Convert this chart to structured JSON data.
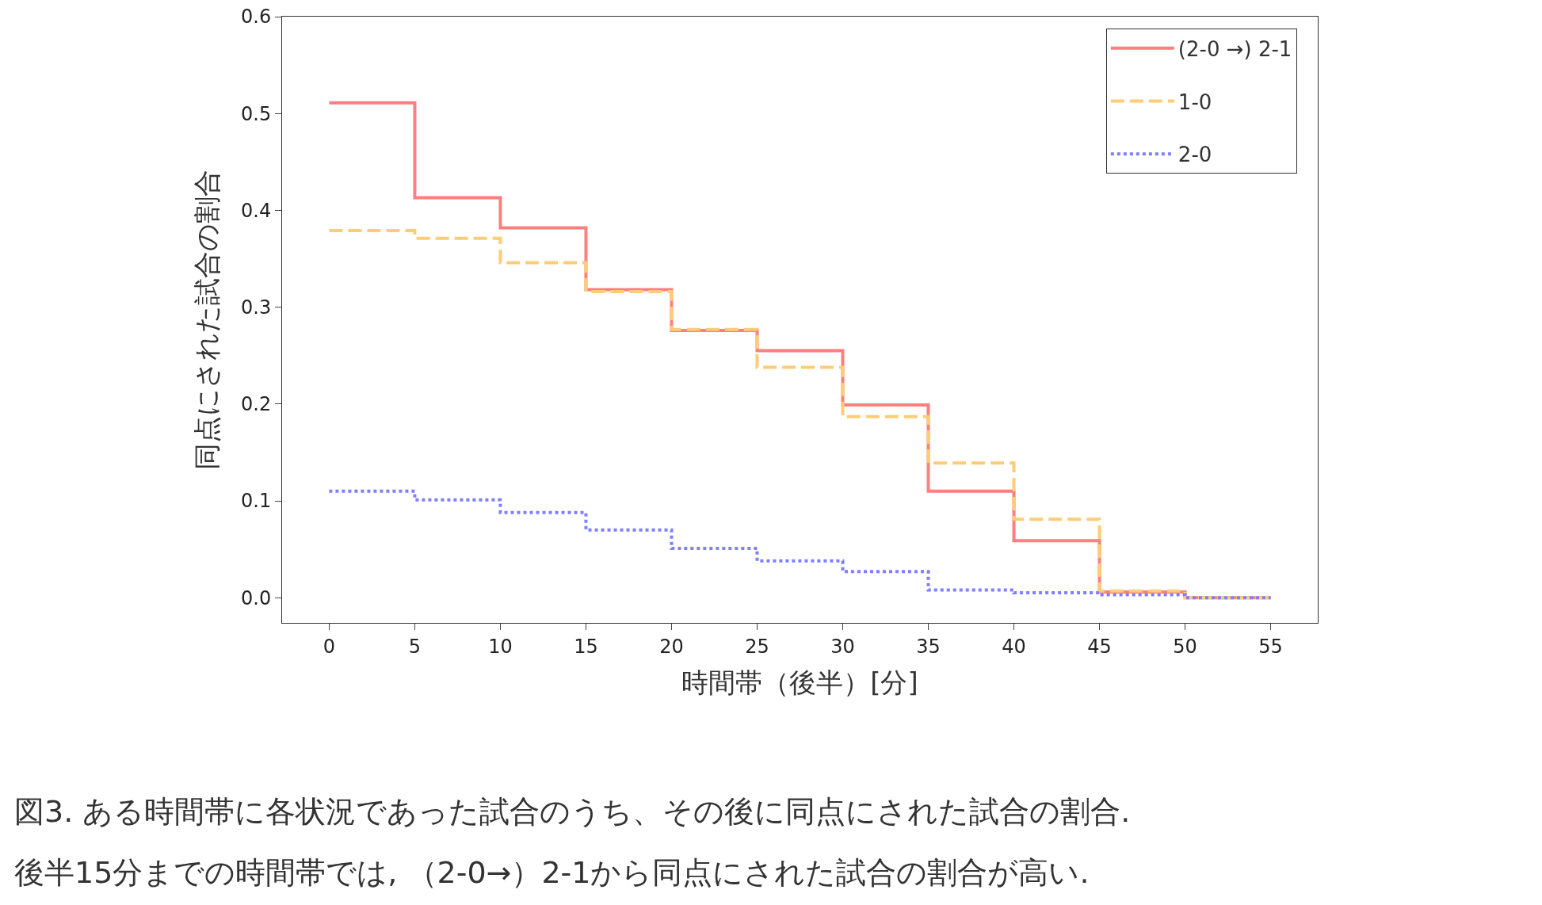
{
  "chart_data": {
    "type": "step",
    "xlabel": "時間帯（後半）[分]",
    "ylabel": "同点にされた試合の割合",
    "x": [
      0,
      5,
      10,
      15,
      20,
      25,
      30,
      35,
      40,
      45,
      50,
      55
    ],
    "series": [
      {
        "name": "(2-0 →) 2-1",
        "color": "#ff7f7f",
        "line_style": "solid",
        "values": [
          0.511,
          0.413,
          0.382,
          0.318,
          0.276,
          0.255,
          0.199,
          0.11,
          0.059,
          0.006,
          0.0,
          0.0
        ]
      },
      {
        "name": "1-0",
        "color": "#ffcc77",
        "line_style": "dashed",
        "values": [
          0.379,
          0.371,
          0.346,
          0.316,
          0.277,
          0.238,
          0.187,
          0.139,
          0.081,
          0.007,
          0.0,
          0.0
        ]
      },
      {
        "name": "2-0",
        "color": "#7f7fff",
        "line_style": "dotted",
        "values": [
          0.11,
          0.101,
          0.088,
          0.07,
          0.051,
          0.038,
          0.027,
          0.008,
          0.005,
          0.003,
          0.0,
          0.0
        ]
      }
    ],
    "xlim": [
      -2.75,
      57.75
    ],
    "xticks": [
      0,
      5,
      10,
      15,
      20,
      25,
      30,
      35,
      40,
      45,
      50,
      55
    ],
    "ylim": [
      -0.026,
      0.6
    ],
    "yticks": [
      {
        "value": 0,
        "label": "0.0"
      },
      0.1,
      0.2,
      0.3,
      0.4,
      0.5,
      0.6
    ],
    "grid": false,
    "legend": "top right",
    "marker": "none",
    "annotations": [
      "図3. ある時間帯に各状況であった試合のうち、その後に同点にされた試合の割合.",
      "後半15分までの時間帯では, （2-0→）2-1から同点にされた試合の割合が高い."
    ]
  }
}
